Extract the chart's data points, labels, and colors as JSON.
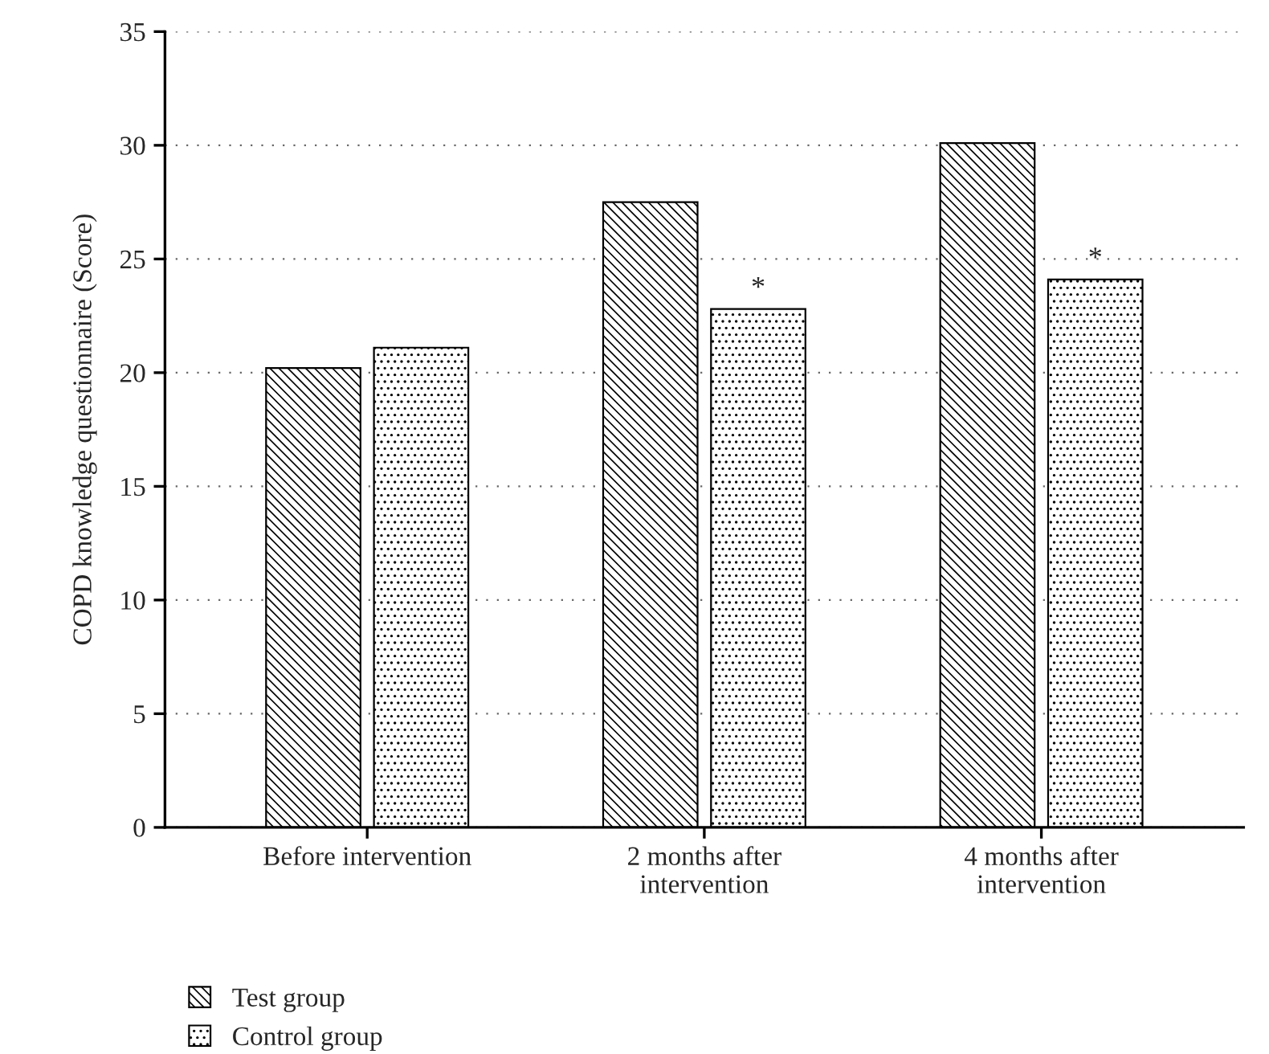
{
  "chart_data": {
    "type": "bar",
    "ylabel": "COPD knowledge questionnaire (Score)",
    "categories": [
      "Before intervention",
      "2 months after\nintervention",
      "4 months after\nintervention"
    ],
    "series": [
      {
        "name": "Test group",
        "color": "#000000",
        "values": [
          20.2,
          27.5,
          30.1
        ]
      },
      {
        "name": "Control group",
        "color": "#000000",
        "values": [
          21.1,
          22.8,
          24.1
        ]
      }
    ],
    "annotations": [
      {
        "text": "*",
        "x": "2 months after\nintervention",
        "y": 22.8
      },
      {
        "text": "*",
        "x": "4 months after\nintervention",
        "y": 24.1
      }
    ],
    "ylim": [
      0,
      35
    ],
    "yticks": [
      0,
      5,
      10,
      15,
      20,
      25,
      30,
      35
    ],
    "grid": "y",
    "legend": "bottom left"
  }
}
